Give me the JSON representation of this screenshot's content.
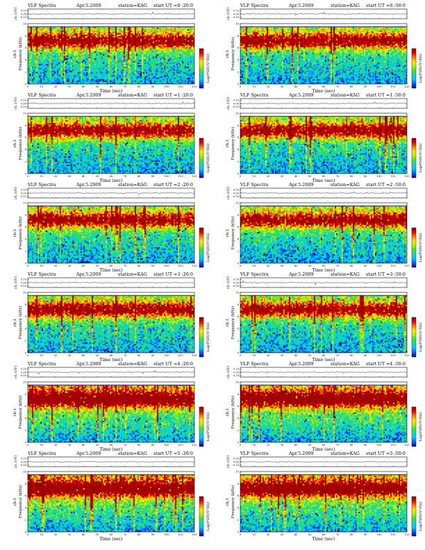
{
  "document": {
    "chart_title": "VLF Spectra",
    "date": "Apr.5.2009",
    "station": "station=KAG"
  },
  "chart_data": [
    {
      "type": "heatmap",
      "title": "VLF Spectra",
      "date": "Apr.5.2009",
      "station": "station=KAG",
      "start_ut": "start  UT  =0 :20:0",
      "top_ylabel": "ch.1(V)",
      "top_yticks": [
        0.1,
        0.0,
        -0.1
      ],
      "channel_label": "ch.1",
      "ylabel": "Frequency  (kHz)",
      "xlabel": "Time  (sec)",
      "xlim": [
        0,
        120
      ],
      "ylim": [
        0,
        10
      ],
      "xticks": [
        0,
        10,
        20,
        30,
        40,
        50,
        60,
        70,
        80,
        90,
        100,
        110,
        120
      ],
      "yticks": [
        0,
        2,
        4,
        6,
        8,
        10
      ],
      "colorbar_label": "Log(PSD)(V²/Hz)",
      "colorbar_ticks": [],
      "intensity_profile_low_to_high": [
        "blue",
        "cyan",
        "green",
        "yellow",
        "red"
      ],
      "freq_cutoff_khz": 9.5
    },
    {
      "type": "heatmap",
      "title": "VLF Spectra",
      "date": "Apr.5.2009",
      "station": "station=KAG",
      "start_ut": "start  UT  =0 :50:0",
      "top_ylabel": "ch.1(V)",
      "top_yticks": [
        0.1,
        0.0,
        -0.1
      ],
      "channel_label": "ch.1",
      "ylabel": "Frequency  (kHz)",
      "xlabel": "Time  (sec)",
      "xlim": [
        0,
        120
      ],
      "ylim": [
        0,
        10
      ],
      "xticks": [
        0,
        10,
        20,
        30,
        40,
        50,
        60,
        70,
        80,
        90,
        100,
        110,
        120
      ],
      "yticks": [
        0,
        2,
        4,
        6,
        8,
        10
      ],
      "colorbar_label": "Log(PSD)(V²/Hz)",
      "colorbar_ticks": [],
      "intensity_profile_low_to_high": [
        "blue",
        "cyan",
        "green",
        "yellow",
        "red"
      ],
      "freq_cutoff_khz": 9.5
    },
    {
      "type": "heatmap",
      "title": "VLF Spectra",
      "date": "Apr.5.2009",
      "station": "station=KAG",
      "start_ut": "start  UT  =1 :20:0",
      "top_ylabel": "ch.1(V)",
      "top_yticks": [
        0.1,
        0.0,
        -0.1
      ],
      "channel_label": "ch.1",
      "ylabel": "Frequency  (kHz)",
      "xlabel": "Time  (sec)",
      "xlim": [
        0,
        120
      ],
      "ylim": [
        0,
        10
      ],
      "xticks": [
        0,
        10,
        20,
        30,
        40,
        50,
        60,
        70,
        80,
        90,
        100,
        110,
        120
      ],
      "yticks": [
        0,
        2,
        4,
        6,
        8,
        10
      ],
      "colorbar_label": "Log(PSD)(V²/Hz)",
      "colorbar_ticks": [],
      "intensity_profile_low_to_high": [
        "blue",
        "cyan",
        "green",
        "yellow",
        "red"
      ],
      "freq_cutoff_khz": 9.5
    },
    {
      "type": "heatmap",
      "title": "VLF Spectra",
      "date": "Apr.5.2009",
      "station": "station=KAG",
      "start_ut": "start  UT  =1 :50:0",
      "top_ylabel": "ch.1(V)",
      "top_yticks": [
        0.1,
        0.0,
        -0.1
      ],
      "channel_label": "ch.1",
      "ylabel": "Frequency  (kHz)",
      "xlabel": "Time  (sec)",
      "xlim": [
        0,
        120
      ],
      "ylim": [
        0,
        10
      ],
      "xticks": [
        0,
        10,
        20,
        30,
        40,
        50,
        60,
        70,
        80,
        90,
        100,
        110,
        120
      ],
      "yticks": [
        0,
        2,
        4,
        6,
        8,
        10
      ],
      "colorbar_label": "Log(PSD)(V²/Hz)",
      "colorbar_ticks": [],
      "intensity_profile_low_to_high": [
        "blue",
        "cyan",
        "green",
        "yellow",
        "red"
      ],
      "freq_cutoff_khz": 9.5
    },
    {
      "type": "heatmap",
      "title": "VLF Spectra",
      "date": "Apr.5.2009",
      "station": "station=KAG",
      "start_ut": "start  UT  =2 :20:0",
      "top_ylabel": "ch.1(V)",
      "top_yticks": [
        0.1,
        0.0,
        -0.1
      ],
      "channel_label": "ch.1",
      "ylabel": "Frequency  (kHz)",
      "xlabel": "Time  (sec)",
      "xlim": [
        0,
        120
      ],
      "ylim": [
        0,
        10
      ],
      "xticks": [
        0,
        10,
        20,
        30,
        40,
        50,
        60,
        70,
        80,
        90,
        100,
        110,
        120
      ],
      "yticks": [
        0,
        2,
        4,
        6,
        8,
        10
      ],
      "colorbar_label": "Log(PSD)(V²/Hz)",
      "colorbar_ticks": [],
      "intensity_profile_low_to_high": [
        "blue",
        "cyan",
        "green",
        "yellow",
        "red"
      ],
      "freq_cutoff_khz": 9.5
    },
    {
      "type": "heatmap",
      "title": "VLF Spectra",
      "date": "Apr.5.2009",
      "station": "station=KAG",
      "start_ut": "start  UT  =2 :50:0",
      "top_ylabel": "ch.1(V)",
      "top_yticks": [
        0.1,
        0.0,
        -0.1
      ],
      "channel_label": "ch.1",
      "ylabel": "Frequency  (kHz)",
      "xlabel": "Time  (sec)",
      "xlim": [
        0,
        120
      ],
      "ylim": [
        0,
        10
      ],
      "xticks": [
        0,
        10,
        20,
        30,
        40,
        50,
        60,
        70,
        80,
        90,
        100,
        110,
        120
      ],
      "yticks": [
        0,
        2,
        4,
        6,
        8,
        10
      ],
      "colorbar_label": "Log(PSD)(V²/Hz)",
      "colorbar_ticks": [],
      "intensity_profile_low_to_high": [
        "blue",
        "cyan",
        "green",
        "yellow",
        "red"
      ],
      "freq_cutoff_khz": 9.5
    },
    {
      "type": "heatmap",
      "title": "VLF Spectra",
      "date": "Apr.5.2009",
      "station": "station=KAG",
      "start_ut": "start  UT  =3 :20:0",
      "top_ylabel": "ch.1(V)",
      "top_yticks": [
        0.1,
        0.0,
        -0.1
      ],
      "channel_label": "ch.1",
      "ylabel": "Frequency  (kHz)",
      "xlabel": "Time  (sec)",
      "xlim": [
        0,
        120
      ],
      "ylim": [
        0,
        10
      ],
      "xticks": [
        0,
        10,
        20,
        30,
        40,
        50,
        60,
        70,
        80,
        90,
        100,
        110,
        120
      ],
      "yticks": [
        0,
        2,
        4,
        6,
        8,
        10
      ],
      "colorbar_label": "Log(PSD)(V²/Hz)",
      "colorbar_ticks": [],
      "intensity_profile_low_to_high": [
        "blue",
        "cyan",
        "green",
        "yellow",
        "red"
      ],
      "freq_cutoff_khz": 9.5
    },
    {
      "type": "heatmap",
      "title": "VLF Spectra",
      "date": "Apr.5.2009",
      "station": "station=KAG",
      "start_ut": "start  UT  =3 :50:0",
      "top_ylabel": "ch.1(V)",
      "top_yticks": [
        0.1,
        0.0,
        -0.1
      ],
      "channel_label": "ch.1",
      "ylabel": "Frequency  (kHz)",
      "xlabel": "Time  (sec)",
      "xlim": [
        0,
        120
      ],
      "ylim": [
        0,
        10
      ],
      "xticks": [
        0,
        10,
        20,
        30,
        40,
        50,
        60,
        70,
        80,
        90,
        100,
        110,
        120
      ],
      "yticks": [
        0,
        2,
        4,
        6,
        8,
        10
      ],
      "colorbar_label": "Log(PSD)(V²/Hz)",
      "colorbar_ticks": [],
      "intensity_profile_low_to_high": [
        "blue",
        "cyan",
        "green",
        "yellow",
        "red"
      ],
      "freq_cutoff_khz": 9.5
    },
    {
      "type": "heatmap",
      "title": "VLF Spectra",
      "date": "Apr.5.2009",
      "station": "station=KAG",
      "start_ut": "start  UT  =4 :20:0",
      "top_ylabel": "ch.1(V)",
      "top_yticks": [
        0.1,
        0.0,
        -0.1
      ],
      "channel_label": "ch.1",
      "ylabel": "Frequency  (kHz)",
      "xlabel": "Time  (sec)",
      "xlim": [
        0,
        120
      ],
      "ylim": [
        0,
        10
      ],
      "xticks": [
        0,
        10,
        20,
        30,
        40,
        50,
        60,
        70,
        80,
        90,
        100,
        110,
        120
      ],
      "yticks": [
        0,
        2,
        4,
        6,
        8,
        10
      ],
      "colorbar_label": "Log(PSD)(V²/Hz)",
      "colorbar_ticks": [],
      "intensity_profile_low_to_high": [
        "blue",
        "cyan",
        "green",
        "yellow",
        "red"
      ],
      "freq_cutoff_khz": 9.5
    },
    {
      "type": "heatmap",
      "title": "VLF Spectra",
      "date": "Apr.5.2009",
      "station": "station=KAG",
      "start_ut": "start  UT  =4 :50:0",
      "top_ylabel": "ch.1(V)",
      "top_yticks": [
        0.1,
        0.0,
        -0.1
      ],
      "channel_label": "ch.1",
      "ylabel": "Frequency  (kHz)",
      "xlabel": "Time  (sec)",
      "xlim": [
        0,
        120
      ],
      "ylim": [
        0,
        10
      ],
      "xticks": [
        0,
        10,
        20,
        30,
        40,
        50,
        60,
        70,
        80,
        90,
        100,
        110,
        120
      ],
      "yticks": [
        0,
        2,
        4,
        6,
        8,
        10
      ],
      "colorbar_label": "Log(PSD)(V²/Hz)",
      "colorbar_ticks": [],
      "intensity_profile_low_to_high": [
        "blue",
        "cyan",
        "green",
        "yellow",
        "red"
      ],
      "freq_cutoff_khz": 9.5
    },
    {
      "type": "heatmap",
      "title": "VLF Spectra",
      "date": "Apr.5.2009",
      "station": "station=KAG",
      "start_ut": "start  UT  =5 :20:0",
      "top_ylabel": "ch.1(V)",
      "top_yticks": [
        0.1,
        0.0,
        -0.1
      ],
      "channel_label": "ch.1",
      "ylabel": "Frequency  (kHz)",
      "xlabel": "Time  (sec)",
      "xlim": [
        0,
        120
      ],
      "ylim": [
        0,
        10
      ],
      "xticks": [
        0,
        10,
        20,
        30,
        40,
        50,
        60,
        70,
        80,
        90,
        100,
        110,
        120
      ],
      "yticks": [
        0,
        2,
        4,
        6,
        8,
        10
      ],
      "colorbar_label": "Log(PSD)(V²/Hz)",
      "colorbar_ticks": [],
      "intensity_profile_low_to_high": [
        "blue",
        "cyan",
        "green",
        "yellow",
        "red"
      ],
      "freq_cutoff_khz": 9.5
    },
    {
      "type": "heatmap",
      "title": "VLF Spectra",
      "date": "Apr.5.2009",
      "station": "station=KAG",
      "start_ut": "start  UT  =5 :50:0",
      "top_ylabel": "ch.1(V)",
      "top_yticks": [
        0.1,
        0.0,
        -0.1
      ],
      "channel_label": "ch.1",
      "ylabel": "Frequency  (kHz)",
      "xlabel": "Time  (sec)",
      "xlim": [
        0,
        120
      ],
      "ylim": [
        0,
        10
      ],
      "xticks": [
        0,
        10,
        20,
        30,
        40,
        50,
        60,
        70,
        80,
        90,
        100,
        110,
        120
      ],
      "yticks": [
        0,
        2,
        4,
        6,
        8,
        10
      ],
      "colorbar_label": "Log(PSD)(V²/Hz)",
      "colorbar_ticks": [],
      "intensity_profile_low_to_high": [
        "blue",
        "cyan",
        "green",
        "yellow",
        "red"
      ],
      "freq_cutoff_khz": 9.5
    }
  ],
  "colors": {
    "spectrogram_scale": [
      "#0000b0",
      "#0060ff",
      "#00c8ff",
      "#10dcb0",
      "#40e040",
      "#b0f000",
      "#ffe600",
      "#ff8000",
      "#e00000",
      "#a00000"
    ],
    "axis": "#000000",
    "background": "#ffffff"
  }
}
